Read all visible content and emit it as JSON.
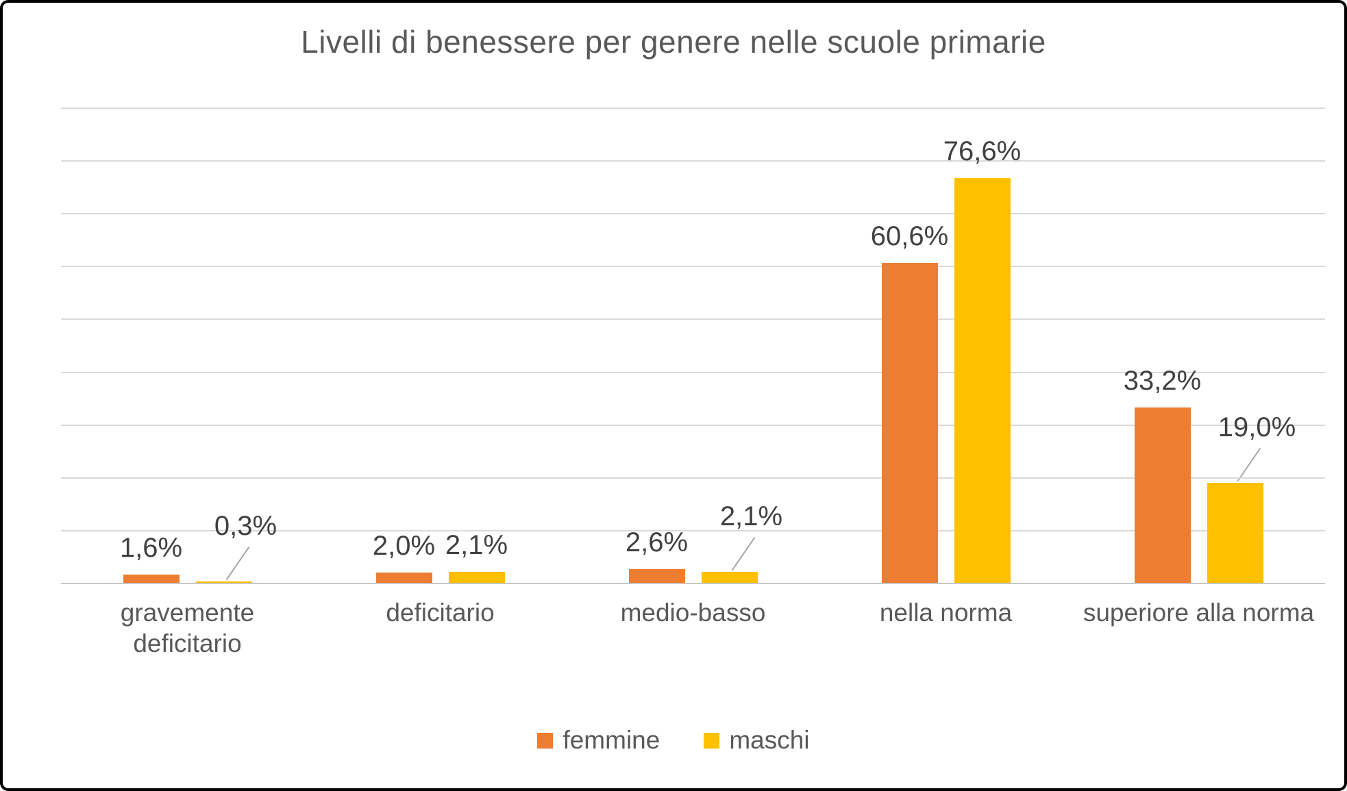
{
  "chart_data": {
    "type": "bar",
    "title": "Livelli di benessere per genere nelle scuole primarie",
    "xlabel": "",
    "ylabel": "",
    "categories": [
      "gravemente deficitario",
      "deficitario",
      "medio-basso",
      "nella norma",
      "superiore alla norma"
    ],
    "series": [
      {
        "name": "femmine",
        "color": "#ED7D31",
        "values": [
          1.6,
          2.0,
          2.6,
          60.6,
          33.2
        ],
        "labels": [
          "1,6%",
          "2,0%",
          "2,6%",
          "60,6%",
          "33,2%"
        ],
        "leader_lines": [
          false,
          false,
          false,
          false,
          false
        ]
      },
      {
        "name": "maschi",
        "color": "#FFC000",
        "values": [
          0.3,
          2.1,
          2.1,
          76.6,
          19.0
        ],
        "labels": [
          "0,3%",
          "2,1%",
          "2,1%",
          "76,6%",
          "19,0%"
        ],
        "leader_lines": [
          true,
          false,
          true,
          false,
          true
        ]
      }
    ],
    "ylim": [
      0,
      90
    ],
    "gridline_step": 10,
    "grid": true,
    "y_axis_labels_visible": false,
    "legend_position": "bottom"
  },
  "colors": {
    "title_text": "#595959",
    "data_label_text": "#404040",
    "axis_label_text": "#595959",
    "gridline": "#D9D9D9",
    "leader_line": "#A6A6A6",
    "frame_border": "#000000",
    "background": "#FFFFFF"
  }
}
